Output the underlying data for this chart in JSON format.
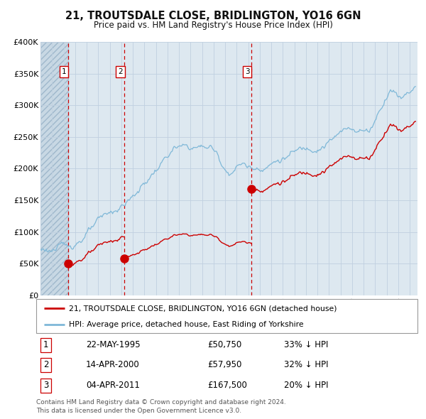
{
  "title": "21, TROUTSDALE CLOSE, BRIDLINGTON, YO16 6GN",
  "subtitle": "Price paid vs. HM Land Registry's House Price Index (HPI)",
  "legend_line1": "21, TROUTSDALE CLOSE, BRIDLINGTON, YO16 6GN (detached house)",
  "legend_line2": "HPI: Average price, detached house, East Riding of Yorkshire",
  "table_rows": [
    {
      "num": "1",
      "date": "22-MAY-1995",
      "price": "£50,750",
      "pct": "33% ↓ HPI"
    },
    {
      "num": "2",
      "date": "14-APR-2000",
      "price": "£57,950",
      "pct": "32% ↓ HPI"
    },
    {
      "num": "3",
      "date": "04-APR-2011",
      "price": "£167,500",
      "pct": "20% ↓ HPI"
    }
  ],
  "footnote": "Contains HM Land Registry data © Crown copyright and database right 2024.\nThis data is licensed under the Open Government Licence v3.0.",
  "sale_prices": [
    50750,
    57950,
    167500
  ],
  "sale_numbers": [
    "1",
    "2",
    "3"
  ],
  "hpi_color": "#7fb8d8",
  "price_color": "#cc0000",
  "dot_color": "#cc0000",
  "vline_color": "#cc0000",
  "grid_color": "#c0d0e0",
  "bg_color": "#dde8f0",
  "ylabel_color": "#333333",
  "title_color": "#111111",
  "ylim": [
    0,
    400000
  ],
  "yticks": [
    0,
    50000,
    100000,
    150000,
    200000,
    250000,
    300000,
    350000,
    400000
  ],
  "ytick_labels": [
    "£0",
    "£50K",
    "£100K",
    "£150K",
    "£200K",
    "£250K",
    "£300K",
    "£350K",
    "£400K"
  ],
  "xstart": 1993.0,
  "xend": 2025.67
}
